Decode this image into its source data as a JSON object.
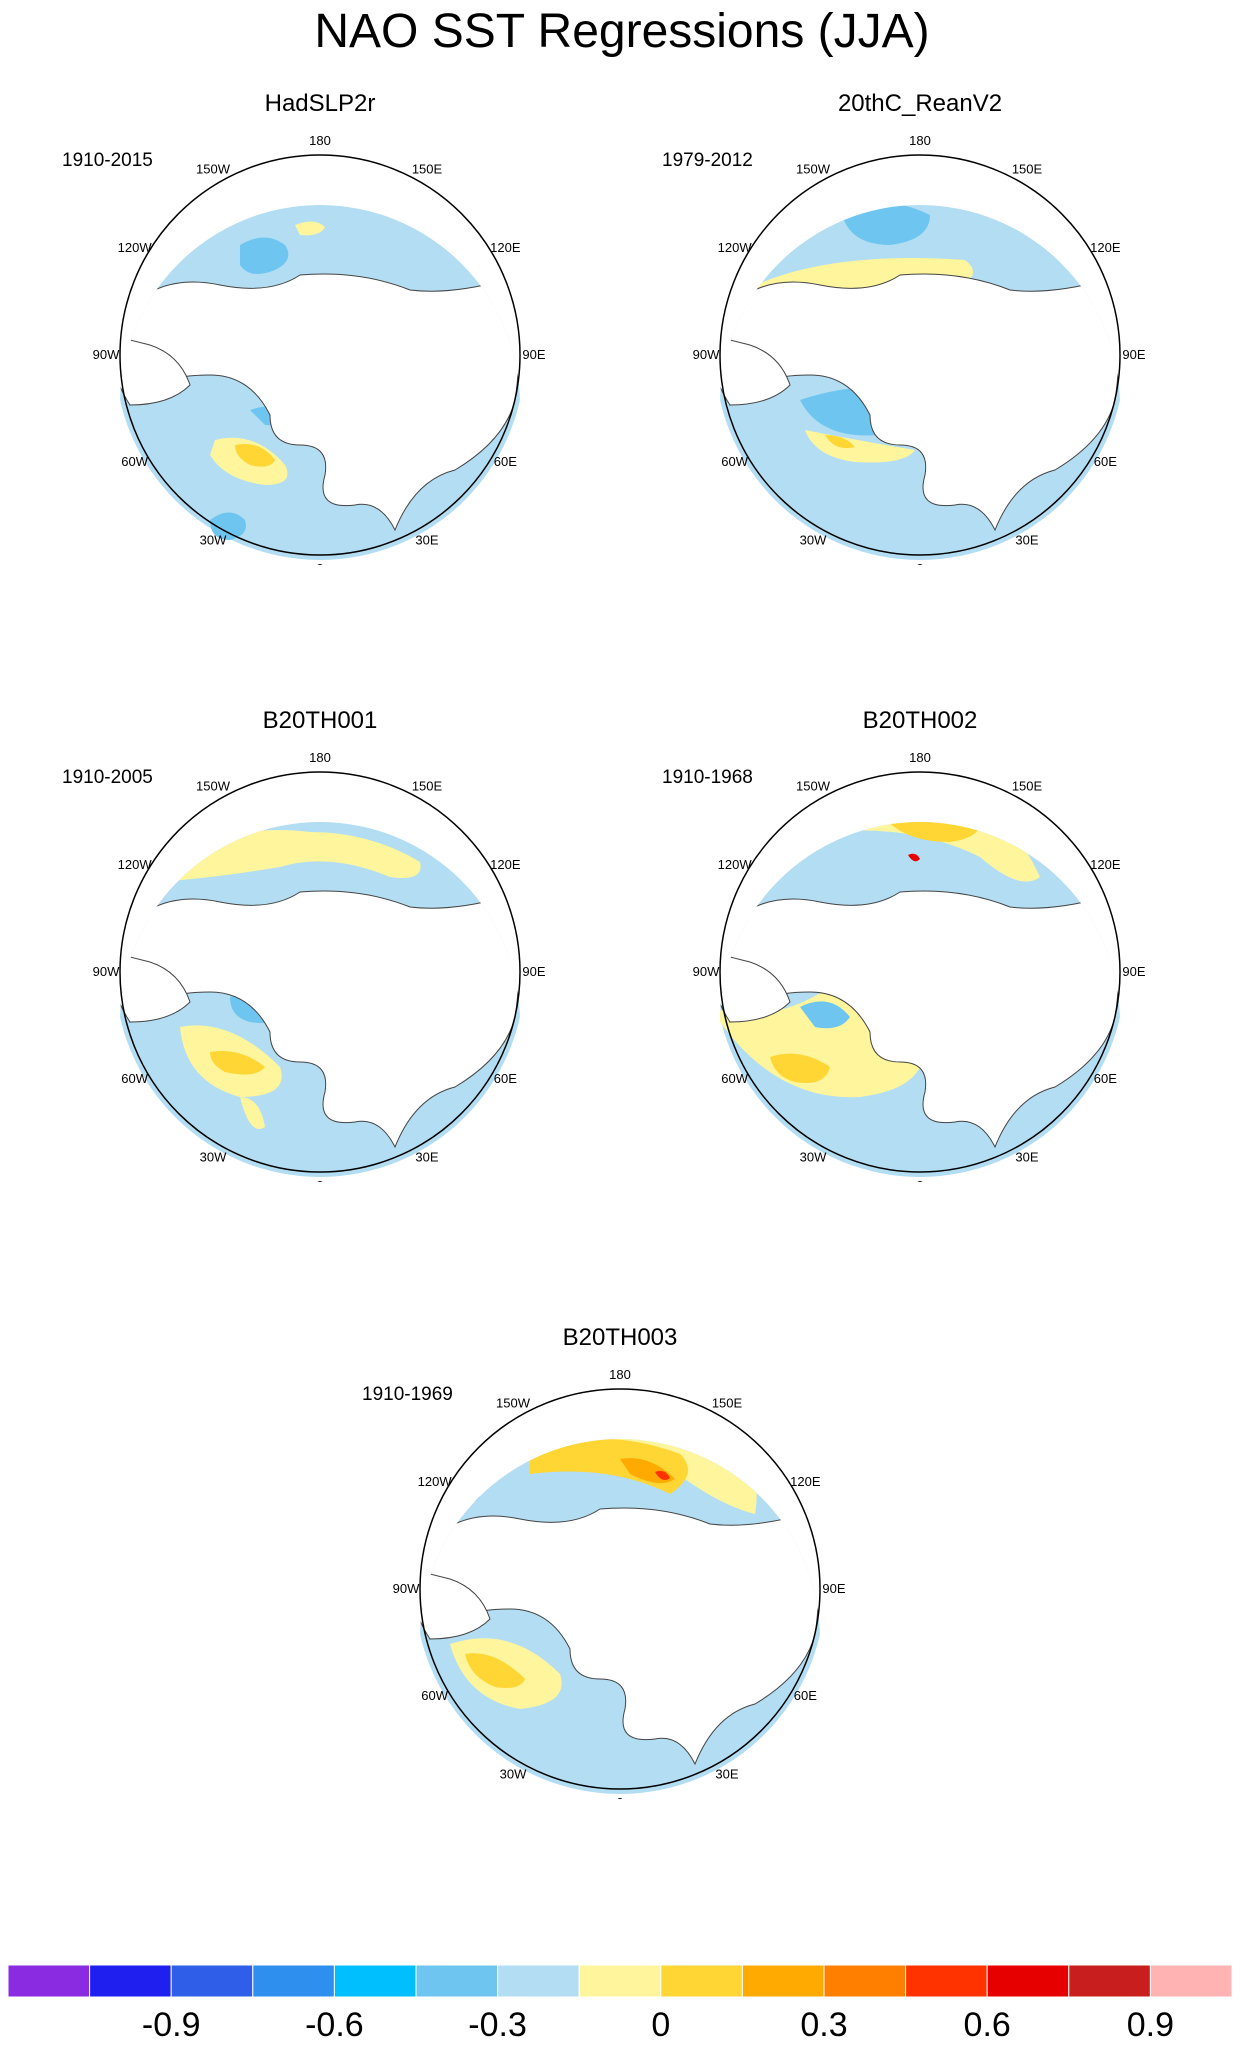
{
  "title": "NAO SST Regressions (JJA)",
  "panels": [
    {
      "name": "HadSLP2r",
      "period": "1910-2015"
    },
    {
      "name": "20thC_ReanV2",
      "period": "1979-2012"
    },
    {
      "name": "B20TH001",
      "period": "1910-2005"
    },
    {
      "name": "B20TH002",
      "period": "1910-1968"
    },
    {
      "name": "B20TH003",
      "period": "1910-1969"
    }
  ],
  "lon_labels": {
    "180": "180",
    "150E": "150E",
    "120E": "120E",
    "90E": "90E",
    "60E": "60E",
    "30E": "30E",
    "0": "0",
    "30W": "30W",
    "60W": "60W",
    "90W": "90W",
    "120W": "120W",
    "150W": "150W"
  },
  "colorbar": {
    "colors": [
      "#8a2be2",
      "#1f1ff0",
      "#2f5fe8",
      "#2f8fef",
      "#00bfff",
      "#6ec6f0",
      "#b3ddf2",
      "#fff59d",
      "#ffd633",
      "#ffaa00",
      "#ff7f00",
      "#ff3300",
      "#e60000",
      "#c81e1e",
      "#ffb3b3"
    ],
    "labels": [
      "-0.9",
      "-0.6",
      "-0.3",
      "0",
      "0.3",
      "0.6",
      "0.9"
    ]
  }
}
